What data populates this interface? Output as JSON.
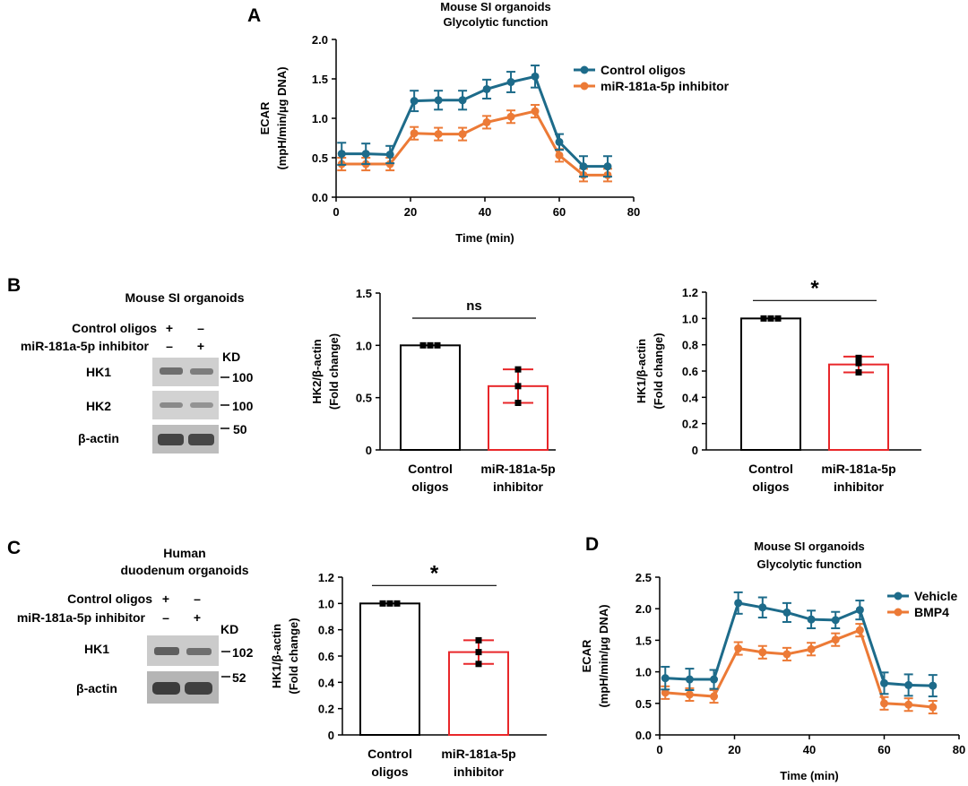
{
  "panels": {
    "A": "A",
    "B": "B",
    "C": "C",
    "D": "D"
  },
  "colors": {
    "control": "#1d6b8a",
    "treatment": "#ec7a36",
    "bar_red": "#e8272a",
    "black": "#000000",
    "band": "#4a4a4a",
    "blot_bg": "#c9c9c9"
  },
  "chart_data": [
    {
      "id": "A",
      "type": "line",
      "title": [
        "Mouse SI organoids",
        "Glycolytic function"
      ],
      "xlabel": "Time (min)",
      "ylabel": [
        "ECAR",
        "(mpH/min/µg DNA)"
      ],
      "xlim": [
        0,
        80
      ],
      "ylim": [
        0,
        2.0
      ],
      "xticks": [
        "0",
        "20",
        "40",
        "60",
        "80"
      ],
      "yticks": [
        "0.0",
        "0.5",
        "1.0",
        "1.5",
        "2.0"
      ],
      "x": [
        1.5,
        8,
        14.5,
        21,
        27.5,
        34,
        40.5,
        47,
        53.5,
        60,
        66.5,
        73
      ],
      "series": [
        {
          "name": "Control oligos",
          "color": "#1d6b8a",
          "values": [
            0.55,
            0.55,
            0.54,
            1.22,
            1.23,
            1.23,
            1.37,
            1.46,
            1.53,
            0.7,
            0.39,
            0.39
          ],
          "err": [
            0.14,
            0.13,
            0.11,
            0.13,
            0.12,
            0.12,
            0.12,
            0.13,
            0.14,
            0.1,
            0.13,
            0.13
          ]
        },
        {
          "name": "miR-181a-5p inhibitor",
          "color": "#ec7a36",
          "values": [
            0.42,
            0.42,
            0.42,
            0.81,
            0.8,
            0.8,
            0.95,
            1.02,
            1.09,
            0.53,
            0.28,
            0.28
          ],
          "err": [
            0.08,
            0.08,
            0.08,
            0.08,
            0.08,
            0.08,
            0.08,
            0.08,
            0.08,
            0.08,
            0.08,
            0.08
          ]
        }
      ]
    },
    {
      "id": "B-HK2",
      "type": "bar",
      "categories": [
        [
          "Control",
          "oligos"
        ],
        [
          "miR-181a-5p",
          "inhibitor"
        ]
      ],
      "values": [
        1.0,
        0.61
      ],
      "err": [
        0.0,
        0.16
      ],
      "points": [
        [
          1.0,
          1.0,
          1.0
        ],
        [
          0.77,
          0.61,
          0.45
        ]
      ],
      "ylabel": [
        "HK2/β-actin",
        "(Fold change)"
      ],
      "ylim": [
        0,
        1.5
      ],
      "yticks": [
        "0",
        "0.5",
        "1.0",
        "1.5"
      ],
      "significance": "ns"
    },
    {
      "id": "B-HK1",
      "type": "bar",
      "categories": [
        [
          "Control",
          "oligos"
        ],
        [
          "miR-181a-5p",
          "inhibitor"
        ]
      ],
      "values": [
        1.0,
        0.65
      ],
      "err": [
        0.0,
        0.06
      ],
      "points": [
        [
          1.0,
          1.0,
          1.0
        ],
        [
          0.7,
          0.66,
          0.59
        ]
      ],
      "ylabel": [
        "HK1/β-actin",
        "(Fold change)"
      ],
      "ylim": [
        0,
        1.2
      ],
      "yticks": [
        "0",
        "0.2",
        "0.4",
        "0.6",
        "0.8",
        "1.0",
        "1.2"
      ],
      "significance": "*"
    },
    {
      "id": "C-HK1",
      "type": "bar",
      "categories": [
        [
          "Control",
          "oligos"
        ],
        [
          "miR-181a-5p",
          "inhibitor"
        ]
      ],
      "values": [
        1.0,
        0.63
      ],
      "err": [
        0.0,
        0.09
      ],
      "points": [
        [
          1.0,
          1.0,
          1.0
        ],
        [
          0.72,
          0.63,
          0.54
        ]
      ],
      "ylabel": [
        "HK1/β-actin",
        "(Fold change)"
      ],
      "ylim": [
        0,
        1.2
      ],
      "yticks": [
        "0",
        "0.2",
        "0.4",
        "0.6",
        "0.8",
        "1.0",
        "1.2"
      ],
      "significance": "*"
    },
    {
      "id": "D",
      "type": "line",
      "title": [
        "Mouse SI organoids",
        "Glycolytic function"
      ],
      "xlabel": "Time (min)",
      "ylabel": [
        "ECAR",
        "(mpH/min/µg DNA)"
      ],
      "xlim": [
        0,
        80
      ],
      "ylim": [
        0,
        2.5
      ],
      "xticks": [
        "0",
        "20",
        "40",
        "60",
        "80"
      ],
      "yticks": [
        "0.0",
        "0.5",
        "1.0",
        "1.5",
        "2.0",
        "2.5"
      ],
      "x": [
        1.5,
        8,
        14.5,
        21,
        27.5,
        34,
        40.5,
        47,
        53.5,
        60,
        66.5,
        73
      ],
      "series": [
        {
          "name": "Vehicle",
          "color": "#1d6b8a",
          "values": [
            0.9,
            0.88,
            0.88,
            2.09,
            2.02,
            1.94,
            1.83,
            1.82,
            1.98,
            0.82,
            0.79,
            0.78
          ],
          "err": [
            0.18,
            0.17,
            0.15,
            0.17,
            0.16,
            0.15,
            0.14,
            0.13,
            0.15,
            0.17,
            0.17,
            0.17
          ]
        },
        {
          "name": "BMP4",
          "color": "#ec7a36",
          "values": [
            0.67,
            0.64,
            0.61,
            1.37,
            1.31,
            1.28,
            1.36,
            1.51,
            1.66,
            0.5,
            0.48,
            0.44
          ],
          "err": [
            0.1,
            0.1,
            0.1,
            0.1,
            0.1,
            0.1,
            0.1,
            0.1,
            0.1,
            0.1,
            0.1,
            0.1
          ]
        }
      ]
    }
  ],
  "blots": {
    "B": {
      "title": "Mouse SI organoids",
      "conditions": [
        {
          "label": "Control oligos",
          "lanes": [
            "+",
            "–"
          ]
        },
        {
          "label": "miR-181a-5p inhibitor",
          "lanes": [
            "–",
            "+"
          ]
        }
      ],
      "kd_label": "KD",
      "rows": [
        {
          "label": "HK1",
          "kd": "100"
        },
        {
          "label": "HK2",
          "kd": "100"
        },
        {
          "label": "β-actin",
          "kd": "50"
        }
      ]
    },
    "C": {
      "title": [
        "Human",
        "duodenum organoids"
      ],
      "conditions": [
        {
          "label": "Control oligos",
          "lanes": [
            "+",
            "–"
          ]
        },
        {
          "label": "miR-181a-5p inhibitor",
          "lanes": [
            "–",
            "+"
          ]
        }
      ],
      "kd_label": "KD",
      "rows": [
        {
          "label": "HK1",
          "kd": "102"
        },
        {
          "label": "β-actin",
          "kd": "52"
        }
      ]
    }
  }
}
